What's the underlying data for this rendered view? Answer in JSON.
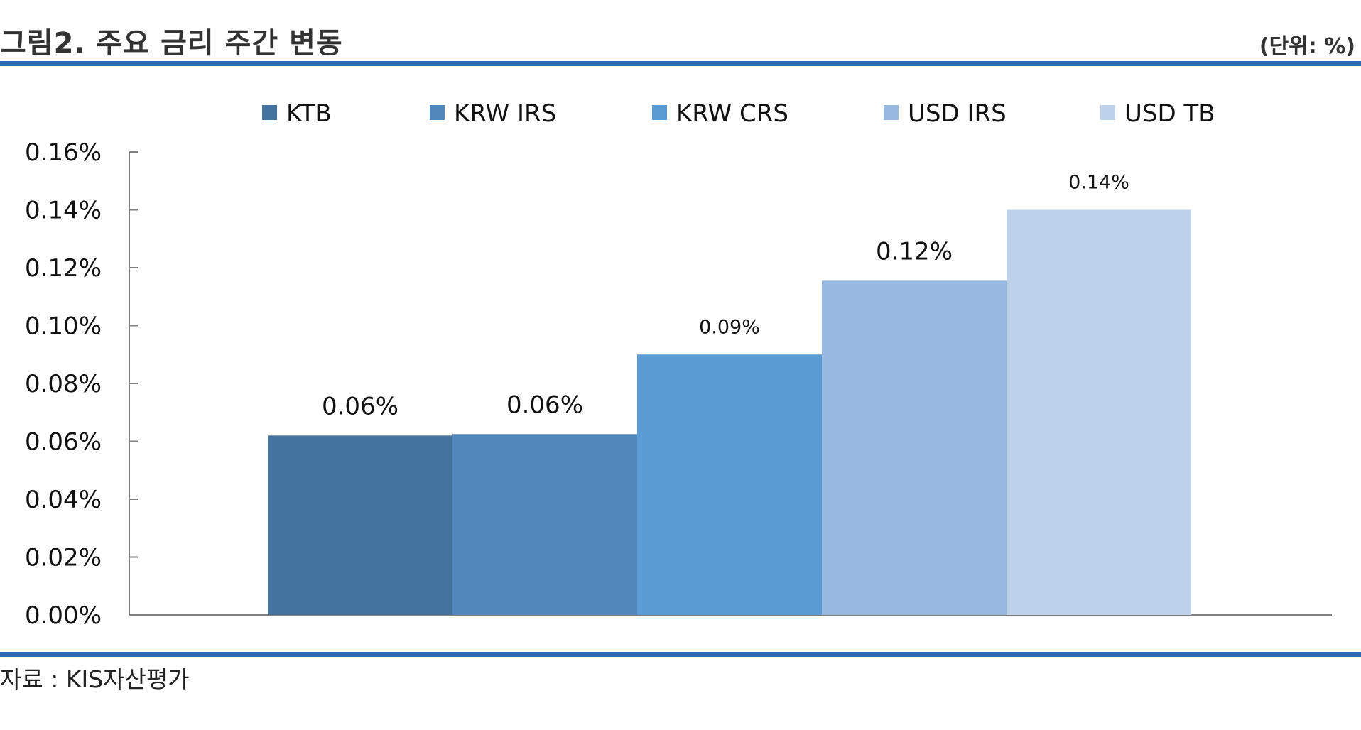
{
  "header": {
    "title": "그림2. 주요 금리 주간 변동",
    "unit": "(단위: %)"
  },
  "footer": {
    "source": "자료 : KIS자산평가"
  },
  "colors": {
    "rule": "#2f6db3",
    "axis": "#7f7f7f"
  },
  "chart_data": {
    "type": "bar",
    "title": "",
    "xlabel": "",
    "ylabel": "",
    "ylim": [
      0,
      0.16
    ],
    "yticks": [
      "0.00%",
      "0.02%",
      "0.04%",
      "0.06%",
      "0.08%",
      "0.10%",
      "0.12%",
      "0.14%",
      "0.16%"
    ],
    "legend_position": "top",
    "grid": false,
    "series": [
      {
        "name": "KTB",
        "value": 0.062,
        "label": "0.06%",
        "color": "#44739f"
      },
      {
        "name": "KRW IRS",
        "value": 0.0625,
        "label": "0.06%",
        "color": "#5187bb"
      },
      {
        "name": "KRW CRS",
        "value": 0.09,
        "label": "0.09%",
        "color": "#5b9bd3"
      },
      {
        "name": "USD IRS",
        "value": 0.1155,
        "label": "0.12%",
        "color": "#97b8df"
      },
      {
        "name": "USD TB",
        "value": 0.14,
        "label": "0.14%",
        "color": "#bdd1ea"
      }
    ]
  }
}
